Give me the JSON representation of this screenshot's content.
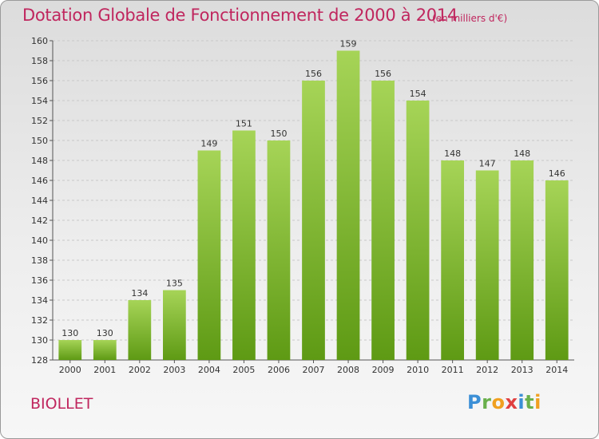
{
  "title": "Dotation Globale de Fonctionnement de 2000 à 2014",
  "unit": "(en milliers d'€)",
  "commune": "BIOLLET",
  "logo": {
    "text": "Proxiti",
    "letters": [
      {
        "ch": "P",
        "color": "#3b8fd6"
      },
      {
        "ch": "r",
        "color": "#6ab04c"
      },
      {
        "ch": "o",
        "color": "#f0a020"
      },
      {
        "ch": "x",
        "color": "#e04040"
      },
      {
        "ch": "i",
        "color": "#3b8fd6"
      },
      {
        "ch": "t",
        "color": "#6ab04c"
      },
      {
        "ch": "i",
        "color": "#f0a020"
      }
    ]
  },
  "colors": {
    "title": "#c0265e",
    "bar_top": "#a6d457",
    "bar_bottom": "#5e9a14",
    "grid": "#c8c8c8"
  },
  "chart_data": {
    "type": "bar",
    "categories": [
      "2000",
      "2001",
      "2002",
      "2003",
      "2004",
      "2005",
      "2006",
      "2007",
      "2008",
      "2009",
      "2010",
      "2011",
      "2012",
      "2013",
      "2014"
    ],
    "values": [
      130,
      130,
      134,
      135,
      149,
      151,
      150,
      156,
      159,
      156,
      154,
      148,
      147,
      148,
      146
    ],
    "ylim": [
      128,
      160
    ],
    "ytick_step": 2,
    "grid": true,
    "data_labels": true
  }
}
